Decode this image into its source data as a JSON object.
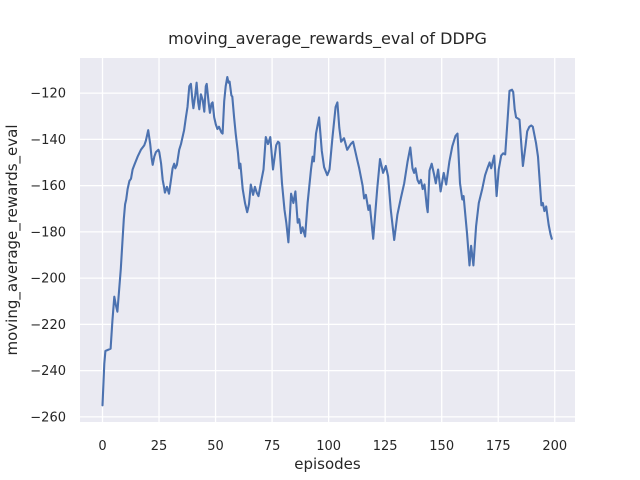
{
  "chart_data": {
    "type": "line",
    "title": "moving_average_rewards_eval of DDPG",
    "xlabel": "episodes",
    "ylabel": "moving_average_rewards_eval",
    "legend": "none",
    "grid": true,
    "axes_background": "#eaeaf2",
    "grid_color": "#ffffff",
    "text_color": "#262626",
    "line_color": "#4c72b0",
    "xlim": [
      -9.95,
      208.95
    ],
    "ylim": [
      -262.2,
      -104.8
    ],
    "xticks": [
      0,
      25,
      50,
      75,
      100,
      125,
      150,
      175,
      200
    ],
    "xtick_labels": [
      "0",
      "25",
      "50",
      "75",
      "100",
      "125",
      "150",
      "175",
      "200"
    ],
    "yticks": [
      -120,
      -140,
      -160,
      -180,
      -200,
      -220,
      -240,
      -260
    ],
    "ytick_labels": [
      "−120",
      "−140",
      "−160",
      "−180",
      "−200",
      "−220",
      "−240",
      "−260"
    ],
    "series": [
      {
        "color": "#4c72b0",
        "points": [
          [
            0,
            -255
          ],
          [
            0.8,
            -237
          ],
          [
            1.3,
            -231.5
          ],
          [
            3.6,
            -230.5
          ],
          [
            4.4,
            -218.5
          ],
          [
            5.2,
            -208
          ],
          [
            5.9,
            -211.5
          ],
          [
            6.6,
            -214.5
          ],
          [
            8.1,
            -196
          ],
          [
            8.8,
            -184.5
          ],
          [
            9.4,
            -174.5
          ],
          [
            10,
            -168
          ],
          [
            10.5,
            -166
          ],
          [
            11.1,
            -161.5
          ],
          [
            11.9,
            -158
          ],
          [
            12.6,
            -157
          ],
          [
            13.3,
            -153
          ],
          [
            14.1,
            -151
          ],
          [
            15.5,
            -147.5
          ],
          [
            17,
            -144.5
          ],
          [
            18.5,
            -142.5
          ],
          [
            19.2,
            -140.5
          ],
          [
            20.2,
            -136
          ],
          [
            21.1,
            -142
          ],
          [
            21.7,
            -148
          ],
          [
            22.2,
            -151
          ],
          [
            22.9,
            -147.5
          ],
          [
            23.6,
            -145.5
          ],
          [
            24.7,
            -144.5
          ],
          [
            25.1,
            -145.5
          ],
          [
            25.9,
            -150.5
          ],
          [
            26.6,
            -157.5
          ],
          [
            27.3,
            -161
          ],
          [
            27.6,
            -163
          ],
          [
            28.5,
            -160.5
          ],
          [
            29.4,
            -163.5
          ],
          [
            30.3,
            -157.5
          ],
          [
            31,
            -152.5
          ],
          [
            31.7,
            -150.5
          ],
          [
            32.2,
            -152.5
          ],
          [
            32.9,
            -151
          ],
          [
            33.9,
            -144.5
          ],
          [
            34.7,
            -142
          ],
          [
            36.1,
            -136
          ],
          [
            36.9,
            -130.5
          ],
          [
            37.6,
            -126
          ],
          [
            38.4,
            -117
          ],
          [
            39.1,
            -116
          ],
          [
            39.8,
            -123.5
          ],
          [
            40.2,
            -126.5
          ],
          [
            41,
            -121
          ],
          [
            41.6,
            -115.5
          ],
          [
            42.3,
            -124
          ],
          [
            42.8,
            -127
          ],
          [
            43.5,
            -120.5
          ],
          [
            44.3,
            -123
          ],
          [
            45,
            -128
          ],
          [
            45.7,
            -117
          ],
          [
            46.1,
            -116
          ],
          [
            46.9,
            -124
          ],
          [
            47.5,
            -128.5
          ],
          [
            48.2,
            -124.5
          ],
          [
            48.7,
            -124
          ],
          [
            49.4,
            -130.5
          ],
          [
            50.1,
            -133.5
          ],
          [
            50.8,
            -135.5
          ],
          [
            51.5,
            -134.5
          ],
          [
            52.6,
            -137
          ],
          [
            53.1,
            -137.5
          ],
          [
            53.8,
            -123.5
          ],
          [
            54.5,
            -117
          ],
          [
            55.2,
            -113
          ],
          [
            55.7,
            -115.5
          ],
          [
            56.2,
            -115
          ],
          [
            57,
            -121
          ],
          [
            57.4,
            -121.5
          ],
          [
            58.2,
            -130.5
          ],
          [
            58.9,
            -137.5
          ],
          [
            59.9,
            -146
          ],
          [
            60.5,
            -152.5
          ],
          [
            61,
            -150.5
          ],
          [
            62,
            -161.5
          ],
          [
            63,
            -167.5
          ],
          [
            64,
            -171.5
          ],
          [
            64.8,
            -168
          ],
          [
            65.6,
            -159.5
          ],
          [
            66.6,
            -164
          ],
          [
            67.4,
            -160.5
          ],
          [
            68.2,
            -163
          ],
          [
            69,
            -164.5
          ],
          [
            70,
            -159
          ],
          [
            71.2,
            -153
          ],
          [
            72.2,
            -139
          ],
          [
            73.2,
            -142
          ],
          [
            74.2,
            -139
          ],
          [
            75.4,
            -153
          ],
          [
            76.8,
            -142.5
          ],
          [
            77.6,
            -141
          ],
          [
            78.2,
            -141.5
          ],
          [
            79.4,
            -159
          ],
          [
            80.5,
            -170.5
          ],
          [
            81.3,
            -176
          ],
          [
            82.2,
            -184.5
          ],
          [
            83.4,
            -163.5
          ],
          [
            84.4,
            -167.5
          ],
          [
            85.3,
            -162.5
          ],
          [
            86.3,
            -176
          ],
          [
            87,
            -174.5
          ],
          [
            87.8,
            -180.5
          ],
          [
            88.5,
            -178
          ],
          [
            89.6,
            -182
          ],
          [
            90.7,
            -167.5
          ],
          [
            92.2,
            -153
          ],
          [
            92.9,
            -147.5
          ],
          [
            93.5,
            -149.5
          ],
          [
            94.4,
            -137.5
          ],
          [
            95.8,
            -130.5
          ],
          [
            97,
            -145
          ],
          [
            98,
            -152
          ],
          [
            99.4,
            -155.5
          ],
          [
            100.4,
            -153
          ],
          [
            101.7,
            -139
          ],
          [
            103.1,
            -126
          ],
          [
            103.9,
            -124
          ],
          [
            104.7,
            -135
          ],
          [
            105.5,
            -141
          ],
          [
            106.8,
            -139.5
          ],
          [
            108.2,
            -144.5
          ],
          [
            109.8,
            -142
          ],
          [
            110.8,
            -141
          ],
          [
            112.7,
            -149
          ],
          [
            113.5,
            -152.5
          ],
          [
            115,
            -160
          ],
          [
            115.7,
            -165.5
          ],
          [
            116.5,
            -164
          ],
          [
            117.6,
            -170.5
          ],
          [
            118.2,
            -168.5
          ],
          [
            119.7,
            -183
          ],
          [
            121.5,
            -161.5
          ],
          [
            122.7,
            -148.5
          ],
          [
            124.1,
            -154.5
          ],
          [
            125.3,
            -151.5
          ],
          [
            126.3,
            -156
          ],
          [
            127.5,
            -170.5
          ],
          [
            129,
            -183.5
          ],
          [
            130.4,
            -172.5
          ],
          [
            131.9,
            -165.5
          ],
          [
            133.4,
            -159
          ],
          [
            134.9,
            -149.5
          ],
          [
            136.1,
            -143.5
          ],
          [
            137.1,
            -152.5
          ],
          [
            137.8,
            -154.5
          ],
          [
            138.4,
            -152.5
          ],
          [
            139.3,
            -157.5
          ],
          [
            140,
            -159
          ],
          [
            140.8,
            -157.5
          ],
          [
            141.6,
            -161.5
          ],
          [
            142.4,
            -159.5
          ],
          [
            143.4,
            -169
          ],
          [
            143.8,
            -171.5
          ],
          [
            144.6,
            -153.5
          ],
          [
            145.6,
            -150.5
          ],
          [
            146.6,
            -155
          ],
          [
            147.4,
            -159
          ],
          [
            148.4,
            -153
          ],
          [
            149.5,
            -162.5
          ],
          [
            150.9,
            -154.5
          ],
          [
            152,
            -159.5
          ],
          [
            153.4,
            -149.5
          ],
          [
            154.7,
            -143
          ],
          [
            156.1,
            -138.5
          ],
          [
            157,
            -137.5
          ],
          [
            158.1,
            -159
          ],
          [
            159.1,
            -166
          ],
          [
            159.7,
            -164.5
          ],
          [
            161.2,
            -180.5
          ],
          [
            162.3,
            -194.5
          ],
          [
            163,
            -186
          ],
          [
            164,
            -194.5
          ],
          [
            165.2,
            -177.5
          ],
          [
            166.4,
            -167.5
          ],
          [
            167.9,
            -161.5
          ],
          [
            169.2,
            -155.5
          ],
          [
            170.4,
            -152
          ],
          [
            171.2,
            -150
          ],
          [
            171.9,
            -152.5
          ],
          [
            173.2,
            -147
          ],
          [
            174.3,
            -164.5
          ],
          [
            175.2,
            -153
          ],
          [
            176.3,
            -147
          ],
          [
            177.2,
            -146
          ],
          [
            178.1,
            -146.5
          ],
          [
            179.1,
            -132
          ],
          [
            180,
            -119
          ],
          [
            181.1,
            -118.5
          ],
          [
            181.6,
            -119.5
          ],
          [
            182.3,
            -127
          ],
          [
            182.9,
            -130.5
          ],
          [
            183.8,
            -131
          ],
          [
            184.4,
            -131.5
          ],
          [
            185.9,
            -151.5
          ],
          [
            187.1,
            -142.5
          ],
          [
            187.8,
            -136.5
          ],
          [
            188.8,
            -134.5
          ],
          [
            189.6,
            -134
          ],
          [
            190.3,
            -134.5
          ],
          [
            191.7,
            -141.5
          ],
          [
            192.6,
            -147.5
          ],
          [
            193.7,
            -163
          ],
          [
            194.1,
            -168.5
          ],
          [
            194.7,
            -167.5
          ],
          [
            195.4,
            -171
          ],
          [
            196.2,
            -169
          ],
          [
            196.6,
            -172
          ],
          [
            197.3,
            -177
          ],
          [
            198.1,
            -181
          ],
          [
            198.7,
            -183
          ]
        ]
      }
    ]
  }
}
